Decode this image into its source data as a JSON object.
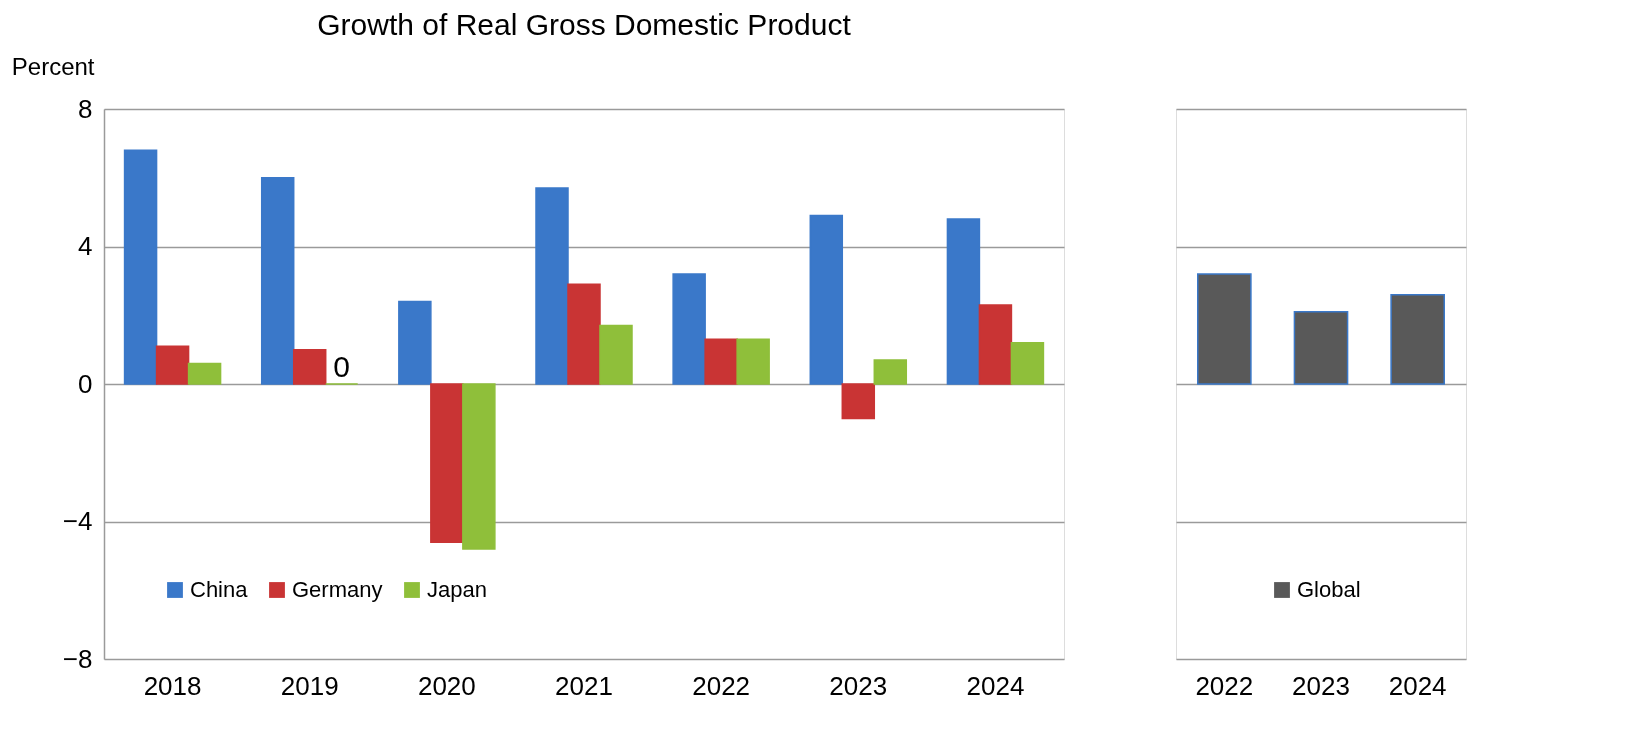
{
  "chart_data": [
    {
      "type": "bar",
      "title": "Growth of Real Gross Domestic Product",
      "ylabel": "Percent",
      "categories": [
        "2018",
        "2019",
        "2020",
        "2021",
        "2022",
        "2023",
        "2024"
      ],
      "series": [
        {
          "name": "China",
          "color": "#3a78c9",
          "values": [
            6.8,
            6.0,
            2.4,
            5.7,
            3.2,
            4.9,
            4.8
          ]
        },
        {
          "name": "Germany",
          "color": "#c93434",
          "values": [
            1.1,
            1.0,
            -4.6,
            2.9,
            1.3,
            -1.0,
            2.3
          ]
        },
        {
          "name": "Japan",
          "color": "#8fbf3a",
          "values": [
            0.6,
            0,
            -4.8,
            1.7,
            1.3,
            0.7,
            1.2
          ],
          "value_labels": [
            null,
            "0",
            null,
            null,
            null,
            null,
            null
          ]
        }
      ],
      "ylim": [
        -8,
        8
      ],
      "yticks": [
        -8,
        -4,
        0,
        4,
        8
      ],
      "grid": "y",
      "legend": "bottom left"
    },
    {
      "type": "bar",
      "categories": [
        "2022",
        "2023",
        "2024"
      ],
      "series": [
        {
          "name": "Global",
          "color": "#595959",
          "values": [
            3.2,
            2.1,
            2.6
          ]
        }
      ],
      "ylim": [
        -8,
        8
      ],
      "yticks": [
        -8,
        -4,
        0,
        4,
        8
      ],
      "grid": "y",
      "legend": "bottom",
      "tick_labels": "x"
    }
  ]
}
